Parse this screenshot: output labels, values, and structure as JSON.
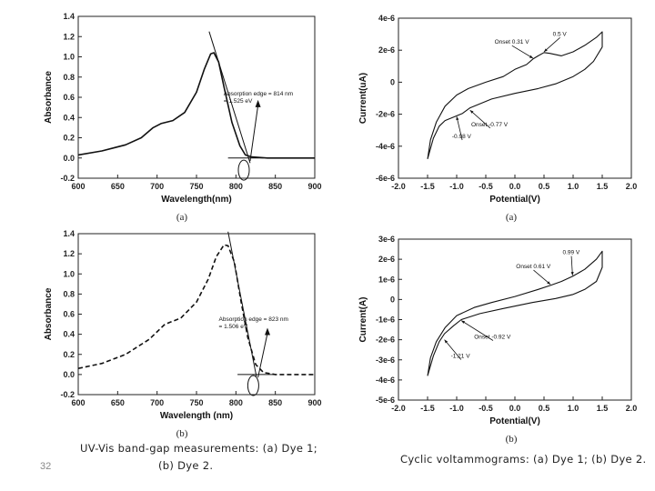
{
  "page": {
    "number": "32",
    "caption_left_1": "UV-Vis band-gap measurements: (a) Dye 1;",
    "caption_left_2": "(b) Dye 2.",
    "caption_right": "Cyclic voltammograms: (a) Dye 1; (b) Dye 2."
  },
  "chart_data": [
    {
      "id": "uv_a",
      "type": "line",
      "sublabel": "(a)",
      "xlabel": "Wavelength(nm)",
      "ylabel": "Absorbance",
      "xlim": [
        600,
        900
      ],
      "ylim": [
        -0.2,
        1.4
      ],
      "xticks": [
        600,
        650,
        700,
        750,
        800,
        850,
        900
      ],
      "yticks": [
        -0.2,
        0.0,
        0.2,
        0.4,
        0.6,
        0.8,
        1.0,
        1.2,
        1.4
      ],
      "xtick_labels": [
        "600",
        "650",
        "700",
        "750",
        "800",
        "850",
        "900"
      ],
      "ytick_labels": [
        "-0.2",
        "0.0",
        "0.2",
        "0.4",
        "0.6",
        "0.8",
        "1.0",
        "1.2",
        "1.4"
      ],
      "series": [
        {
          "name": "absorbance",
          "style": "solid",
          "x": [
            600,
            630,
            660,
            680,
            695,
            705,
            720,
            735,
            750,
            760,
            768,
            772,
            778,
            785,
            795,
            805,
            812,
            820,
            840,
            870,
            900
          ],
          "y": [
            0.03,
            0.07,
            0.13,
            0.2,
            0.3,
            0.34,
            0.37,
            0.45,
            0.65,
            0.88,
            1.03,
            1.04,
            0.95,
            0.7,
            0.35,
            0.12,
            0.03,
            0.01,
            0.0,
            0.0,
            0.0
          ]
        }
      ],
      "tangent": {
        "x": [
          766,
          818
        ],
        "y": [
          1.25,
          -0.05
        ]
      },
      "baseline": {
        "x": [
          790,
          835
        ],
        "y": [
          0.0,
          0.0
        ]
      },
      "circle_center": {
        "x": 810,
        "y": -0.12
      },
      "annotation_lines": [
        "Absorption edge = 814 nm",
        "= 1.525 eV"
      ],
      "annotation_anchor": {
        "x": 812,
        "y": 0.62
      },
      "arrow": {
        "from": {
          "x": 828,
          "y": 0.52
        },
        "to": {
          "x": 818,
          "y": -0.03
        }
      }
    },
    {
      "id": "uv_b",
      "type": "line",
      "sublabel": "(b)",
      "xlabel": "Wavelength (nm)",
      "ylabel": "Absorbance",
      "xlim": [
        600,
        900
      ],
      "ylim": [
        -0.2,
        1.4
      ],
      "xticks": [
        600,
        650,
        700,
        750,
        800,
        850,
        900
      ],
      "yticks": [
        -0.2,
        0.0,
        0.2,
        0.4,
        0.6,
        0.8,
        1.0,
        1.2,
        1.4
      ],
      "xtick_labels": [
        "600",
        "650",
        "700",
        "750",
        "800",
        "850",
        "900"
      ],
      "ytick_labels": [
        "-0.2",
        "0.0",
        "0.2",
        "0.4",
        "0.6",
        "0.8",
        "1.0",
        "1.2",
        "1.4"
      ],
      "series": [
        {
          "name": "absorbance",
          "style": "dashed",
          "x": [
            600,
            630,
            660,
            690,
            710,
            730,
            750,
            765,
            775,
            785,
            790,
            798,
            806,
            815,
            825,
            835,
            850,
            875,
            900
          ],
          "y": [
            0.06,
            0.11,
            0.2,
            0.35,
            0.5,
            0.56,
            0.72,
            0.95,
            1.17,
            1.29,
            1.28,
            1.12,
            0.75,
            0.37,
            0.1,
            0.02,
            0.0,
            0.0,
            0.0
          ]
        }
      ],
      "tangent": {
        "x": [
          790,
          826
        ],
        "y": [
          1.42,
          -0.02
        ]
      },
      "baseline": {
        "x": [
          802,
          850
        ],
        "y": [
          0.0,
          0.0
        ]
      },
      "circle_center": {
        "x": 822,
        "y": -0.11
      },
      "annotation_lines": [
        "Absorption edge = 823 nm",
        "= 1.506 eV"
      ],
      "annotation_anchor": {
        "x": 806,
        "y": 0.53
      },
      "arrow": {
        "from": {
          "x": 840,
          "y": 0.41
        },
        "to": {
          "x": 828,
          "y": -0.03
        }
      }
    },
    {
      "id": "cv_a",
      "type": "line",
      "sublabel": "(a)",
      "xlabel": "Potential(V)",
      "ylabel": "Current(uA)",
      "xlim": [
        -2.0,
        2.0
      ],
      "ylim": [
        -6e-06,
        4e-06
      ],
      "xticks": [
        -2.0,
        -1.5,
        -1.0,
        -0.5,
        0.0,
        0.5,
        1.0,
        1.5,
        2.0
      ],
      "yticks": [
        -6e-06,
        -4e-06,
        -2e-06,
        0,
        2e-06,
        4e-06
      ],
      "xtick_labels": [
        "-2.0",
        "-1.5",
        "-1.0",
        "-0.5",
        "0.0",
        "0.5",
        "1.0",
        "1.5",
        "2.0"
      ],
      "ytick_labels": [
        "-6e-6",
        "-4e-6",
        "-2e-6",
        "0",
        "2e-6",
        "4e-6"
      ],
      "series": [
        {
          "name": "cv_loop",
          "style": "solid",
          "x": [
            -1.5,
            -1.45,
            -1.35,
            -1.2,
            -1.0,
            -0.8,
            -0.5,
            -0.2,
            0.0,
            0.2,
            0.31,
            0.4,
            0.5,
            0.6,
            0.8,
            1.0,
            1.2,
            1.4,
            1.5,
            1.5,
            1.35,
            1.2,
            1.0,
            0.7,
            0.4,
            0.0,
            -0.4,
            -0.77,
            -0.9,
            -1.0,
            -1.1,
            -1.2,
            -1.3,
            -1.4,
            -1.5
          ],
          "y": [
            -4.8e-06,
            -3.6e-06,
            -2.5e-06,
            -1.5e-06,
            -8e-07,
            -4e-07,
            0.0,
            3.5e-07,
            8e-07,
            1.1e-06,
            1.45e-06,
            1.65e-06,
            1.85e-06,
            1.8e-06,
            1.65e-06,
            1.9e-06,
            2.3e-06,
            2.8e-06,
            3.15e-06,
            2.2e-06,
            1.3e-06,
            8e-07,
            3.5e-07,
            -1e-07,
            -4e-07,
            -7e-07,
            -1.05e-06,
            -1.6e-06,
            -1.95e-06,
            -2.1e-06,
            -2.25e-06,
            -2.4e-06,
            -2.75e-06,
            -3.5e-06,
            -4.8e-06
          ]
        }
      ],
      "annotations": [
        {
          "text": "0.5 V",
          "pos": {
            "x": 0.65,
            "y": 2.9e-06
          },
          "arrow_to": {
            "x": 0.5,
            "y": 1.9e-06
          }
        },
        {
          "text": "Onset 0.31 V",
          "pos": {
            "x": -0.35,
            "y": 2.4e-06
          },
          "arrow_to": {
            "x": 0.31,
            "y": 1.5e-06
          }
        },
        {
          "text": "Onset -0.77 V",
          "pos": {
            "x": -0.75,
            "y": -2.75e-06
          },
          "arrow_to": {
            "x": -0.77,
            "y": -1.75e-06
          }
        },
        {
          "text": "-0.98 V",
          "pos": {
            "x": -1.08,
            "y": -3.5e-06
          },
          "arrow_to": {
            "x": -1.0,
            "y": -2.15e-06
          }
        }
      ]
    },
    {
      "id": "cv_b",
      "type": "line",
      "sublabel": "(b)",
      "xlabel": "Potential(V)",
      "ylabel": "Current(A)",
      "xlim": [
        -2.0,
        2.0
      ],
      "ylim": [
        -5e-06,
        3e-06
      ],
      "xticks": [
        -2.0,
        -1.5,
        -1.0,
        -0.5,
        0.0,
        0.5,
        1.0,
        1.5,
        2.0
      ],
      "yticks": [
        -5e-06,
        -4e-06,
        -3e-06,
        -2e-06,
        -1e-06,
        0,
        1e-06,
        2e-06,
        3e-06
      ],
      "xtick_labels": [
        "-2.0",
        "-1.5",
        "-1.0",
        "-0.5",
        "0.0",
        "0.5",
        "1.0",
        "1.5",
        "2.0"
      ],
      "ytick_labels": [
        "-5e-6",
        "-4e-6",
        "-3e-6",
        "-2e-6",
        "-1e-6",
        "0",
        "1e-6",
        "2e-6",
        "3e-6"
      ],
      "series": [
        {
          "name": "cv_loop",
          "style": "solid",
          "x": [
            -1.5,
            -1.45,
            -1.35,
            -1.2,
            -1.0,
            -0.7,
            -0.4,
            0.0,
            0.4,
            0.61,
            0.8,
            0.99,
            1.2,
            1.4,
            1.5,
            1.5,
            1.4,
            1.2,
            1.0,
            0.7,
            0.3,
            -0.2,
            -0.6,
            -0.92,
            -1.05,
            -1.21,
            -1.3,
            -1.4,
            -1.5
          ],
          "y": [
            -3.8e-06,
            -2.9e-06,
            -2.1e-06,
            -1.4e-06,
            -8e-07,
            -4e-07,
            -1.5e-07,
            1.5e-07,
            5e-07,
            7e-07,
            9e-07,
            1.15e-06,
            1.5e-06,
            2e-06,
            2.4e-06,
            1.6e-06,
            9e-07,
            5e-07,
            2.5e-07,
            5e-08,
            -1.5e-07,
            -4.5e-07,
            -7e-07,
            -1e-06,
            -1.3e-06,
            -1.7e-06,
            -2.1e-06,
            -2.8e-06,
            -3.8e-06
          ]
        }
      ],
      "annotations": [
        {
          "text": "0.99 V",
          "pos": {
            "x": 0.82,
            "y": 2.25e-06
          },
          "arrow_to": {
            "x": 0.99,
            "y": 1.2e-06
          }
        },
        {
          "text": "Onset 0.61 V",
          "pos": {
            "x": 0.02,
            "y": 1.55e-06
          },
          "arrow_to": {
            "x": 0.61,
            "y": 7.5e-07
          }
        },
        {
          "text": "Onset -0.92 V",
          "pos": {
            "x": -0.7,
            "y": -1.95e-06
          },
          "arrow_to": {
            "x": -0.92,
            "y": -1.05e-06
          }
        },
        {
          "text": "-1.21 V",
          "pos": {
            "x": -1.1,
            "y": -2.9e-06
          },
          "arrow_to": {
            "x": -1.21,
            "y": -2e-06
          }
        }
      ]
    }
  ]
}
